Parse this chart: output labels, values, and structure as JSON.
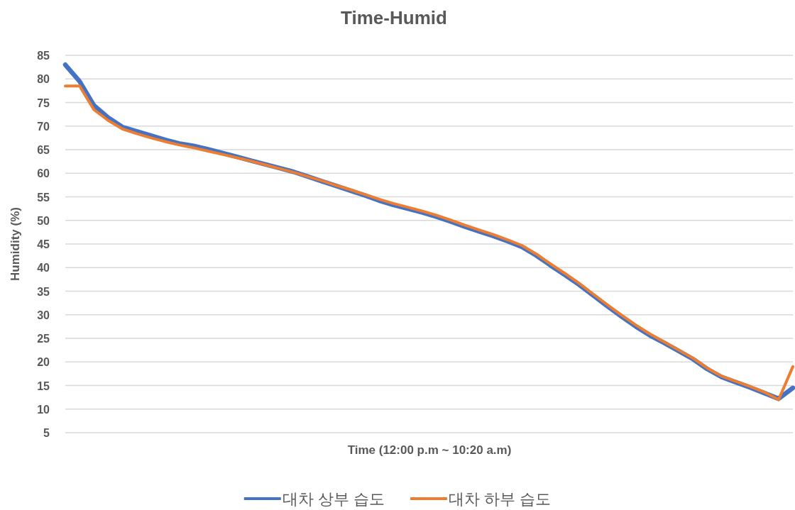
{
  "chart_data": {
    "type": "line",
    "title": "Time-Humid",
    "xlabel": "Time (12:00 p.m ~ 10:20 a.m)",
    "ylabel": "Humidity (%)",
    "categories": [
      null,
      null,
      null,
      null,
      null,
      null,
      null,
      null,
      null,
      null,
      null,
      null,
      null,
      null,
      null,
      null,
      null,
      null,
      null,
      null,
      null,
      null,
      null,
      null,
      null,
      null,
      null,
      null,
      null,
      null,
      null,
      null,
      null,
      null,
      null,
      null,
      null,
      null,
      null,
      null,
      null,
      null,
      null,
      null,
      null,
      null,
      null,
      null,
      null,
      null,
      null,
      null
    ],
    "series": [
      {
        "name": "대차 상부 습도",
        "color": "#4472c4",
        "values": [
          83.0,
          79.5,
          74.4,
          71.8,
          69.8,
          68.9,
          68.0,
          67.1,
          66.3,
          65.8,
          65.1,
          64.3,
          63.5,
          62.7,
          61.9,
          61.1,
          60.3,
          59.3,
          58.3,
          57.3,
          56.3,
          55.3,
          54.2,
          53.3,
          52.5,
          51.7,
          50.8,
          49.8,
          48.7,
          47.7,
          46.7,
          45.6,
          44.4,
          42.6,
          40.5,
          38.5,
          36.4,
          34.1,
          31.8,
          29.6,
          27.5,
          25.6,
          24.0,
          22.3,
          20.6,
          18.5,
          16.8,
          15.7,
          14.6,
          13.4,
          12.2,
          14.5
        ]
      },
      {
        "name": "대차 하부 습도",
        "color": "#ed7d31",
        "values": [
          78.5,
          78.5,
          73.5,
          71.2,
          69.4,
          68.4,
          67.5,
          66.7,
          66.0,
          65.4,
          64.7,
          64.0,
          63.3,
          62.6,
          61.8,
          61.0,
          60.2,
          59.3,
          58.4,
          57.4,
          56.5,
          55.5,
          54.5,
          53.6,
          52.8,
          52.0,
          51.1,
          50.1,
          49.0,
          48.0,
          47.0,
          45.9,
          44.7,
          42.9,
          40.8,
          38.8,
          36.7,
          34.4,
          32.1,
          29.9,
          27.8,
          25.9,
          24.2,
          22.5,
          20.8,
          18.7,
          17.0,
          15.9,
          14.8,
          13.6,
          12.0,
          19.0
        ]
      }
    ],
    "ylim": [
      5,
      85
    ],
    "yticks": [
      5,
      10,
      15,
      20,
      25,
      30,
      35,
      40,
      45,
      50,
      55,
      60,
      65,
      70,
      75,
      80,
      85
    ],
    "grid": "y",
    "legend": "bottom",
    "tick_labels": "y"
  }
}
